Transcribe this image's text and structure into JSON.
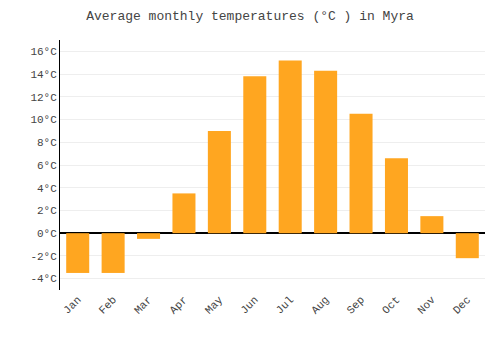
{
  "chart_data": {
    "type": "bar",
    "title": "Average monthly temperatures (°C ) in Myra",
    "categories": [
      "Jan",
      "Feb",
      "Mar",
      "Apr",
      "May",
      "Jun",
      "Jul",
      "Aug",
      "Sep",
      "Oct",
      "Nov",
      "Dec"
    ],
    "values": [
      -3.5,
      -3.5,
      -0.5,
      3.5,
      9.0,
      13.8,
      15.2,
      14.3,
      10.5,
      6.6,
      1.5,
      -2.2
    ],
    "color": "#FFA620",
    "ylim": [
      -5,
      17
    ],
    "yticks": [
      {
        "value": -4,
        "label": "-4°C"
      },
      {
        "value": -2,
        "label": "-2°C"
      },
      {
        "value": 0,
        "label": "0°C"
      },
      {
        "value": 2,
        "label": "2°C"
      },
      {
        "value": 4,
        "label": "4°C"
      },
      {
        "value": 6,
        "label": "6°C"
      },
      {
        "value": 8,
        "label": "8°C"
      },
      {
        "value": 10,
        "label": "10°C"
      },
      {
        "value": 12,
        "label": "12°C"
      },
      {
        "value": 14,
        "label": "14°C"
      },
      {
        "value": 16,
        "label": "16°C"
      }
    ],
    "grid": true
  }
}
